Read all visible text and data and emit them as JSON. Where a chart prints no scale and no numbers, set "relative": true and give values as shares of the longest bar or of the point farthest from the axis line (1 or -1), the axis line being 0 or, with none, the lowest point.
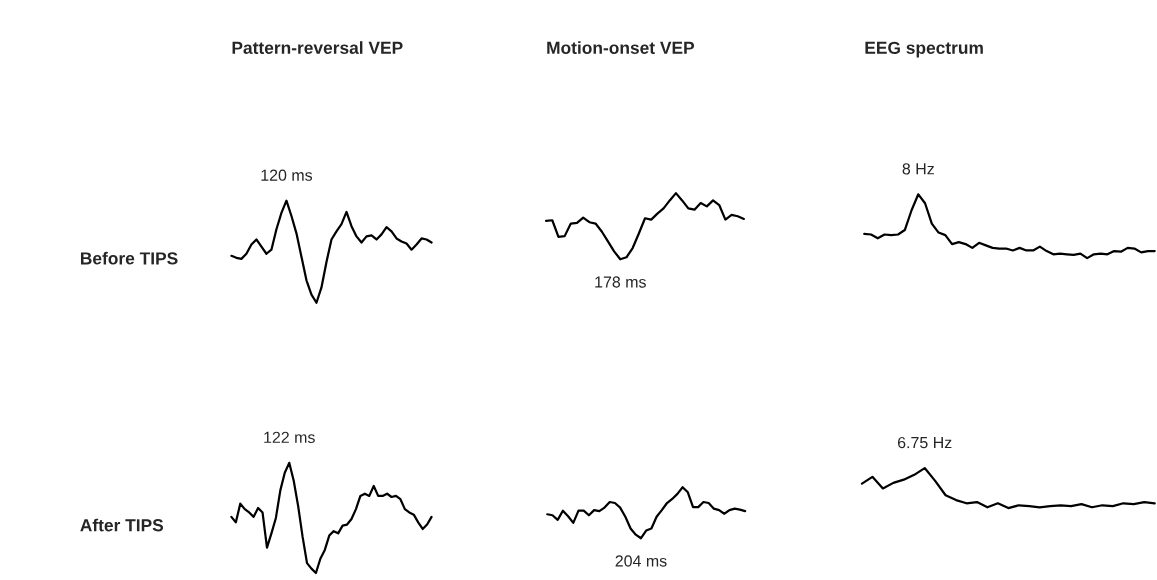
{
  "chart_data": [
    {
      "type": "line",
      "relative": true,
      "title": "Pattern-reversal VEP",
      "ylabel": "Before TIPS",
      "annotations": [
        {
          "text": "120 ms",
          "y": 1
        }
      ],
      "categories": [
        null,
        null,
        null,
        null,
        null,
        null,
        null,
        null,
        null,
        null,
        null,
        null,
        null,
        null,
        null,
        null,
        null,
        null,
        null,
        null,
        null,
        null,
        null,
        null,
        null,
        null,
        null,
        null,
        null,
        null,
        null,
        null,
        null,
        null,
        null,
        null,
        null,
        null,
        null,
        null,
        null
      ],
      "series": [
        {
          "color": "#000000",
          "values": [
            0.46,
            0.44,
            0.43,
            0.48,
            0.57,
            0.62,
            0.55,
            0.48,
            0.52,
            0.72,
            0.88,
            1,
            0.85,
            0.68,
            0.45,
            0.22,
            0.08,
            0,
            0.15,
            0.4,
            0.62,
            0.7,
            0.77,
            0.89,
            0.75,
            0.65,
            0.59,
            0.65,
            0.66,
            0.62,
            0.67,
            0.74,
            0.7,
            0.63,
            0.6,
            0.58,
            0.52,
            0.57,
            0.63,
            0.62,
            0.59
          ]
        }
      ]
    },
    {
      "type": "line",
      "relative": true,
      "title": "Motion-onset VEP",
      "annotations": [
        {
          "text": "178 ms",
          "y": 0
        }
      ],
      "categories": [
        null,
        null,
        null,
        null,
        null,
        null,
        null,
        null,
        null,
        null,
        null,
        null,
        null,
        null,
        null,
        null,
        null,
        null,
        null,
        null,
        null,
        null,
        null,
        null,
        null,
        null,
        null,
        null,
        null,
        null,
        null,
        null,
        null
      ],
      "series": [
        {
          "color": "#000000",
          "values": [
            0.58,
            0.59,
            0.34,
            0.35,
            0.54,
            0.55,
            0.63,
            0.56,
            0.54,
            0.42,
            0.27,
            0.12,
            0,
            0.03,
            0.17,
            0.39,
            0.62,
            0.6,
            0.69,
            0.77,
            0.89,
            1,
            0.89,
            0.77,
            0.75,
            0.85,
            0.8,
            0.89,
            0.82,
            0.6,
            0.67,
            0.65,
            0.61
          ]
        }
      ]
    },
    {
      "type": "line",
      "relative": true,
      "title": "EEG spectrum",
      "annotations": [
        {
          "text": "8 Hz",
          "y": 1
        }
      ],
      "categories": [
        null,
        null,
        null,
        null,
        null,
        null,
        null,
        null,
        null,
        null,
        null,
        null,
        null,
        null,
        null,
        null,
        null,
        null,
        null,
        null,
        null,
        null,
        null,
        null,
        null,
        null,
        null,
        null,
        null,
        null,
        null,
        null,
        null,
        null,
        null,
        null,
        null,
        null,
        null,
        null,
        null,
        null,
        null,
        null
      ],
      "series": [
        {
          "color": "#000000",
          "values": [
            0.38,
            0.37,
            0.31,
            0.37,
            0.36,
            0.37,
            0.44,
            0.75,
            1,
            0.86,
            0.54,
            0.4,
            0.36,
            0.22,
            0.25,
            0.22,
            0.16,
            0.24,
            0.2,
            0.16,
            0.15,
            0.15,
            0.12,
            0.16,
            0.12,
            0.12,
            0.18,
            0.11,
            0.06,
            0.07,
            0.06,
            0.05,
            0.07,
            0,
            0.06,
            0.07,
            0.06,
            0.11,
            0.1,
            0.16,
            0.15,
            0.09,
            0.11,
            0.11
          ]
        }
      ]
    },
    {
      "type": "line",
      "relative": true,
      "ylabel": "After TIPS",
      "annotations": [
        {
          "text": "122 ms",
          "y": 1
        }
      ],
      "categories": [
        null,
        null,
        null,
        null,
        null,
        null,
        null,
        null,
        null,
        null,
        null,
        null,
        null,
        null,
        null,
        null,
        null,
        null,
        null,
        null,
        null,
        null,
        null,
        null,
        null,
        null,
        null,
        null,
        null,
        null,
        null,
        null,
        null,
        null,
        null,
        null,
        null,
        null,
        null,
        null,
        null,
        null,
        null,
        null,
        null,
        null
      ],
      "series": [
        {
          "color": "#000000",
          "values": [
            0.51,
            0.46,
            0.63,
            0.58,
            0.55,
            0.51,
            0.59,
            0.55,
            0.23,
            0.36,
            0.5,
            0.75,
            0.91,
            1,
            0.84,
            0.61,
            0.33,
            0.09,
            0.04,
            0,
            0.13,
            0.21,
            0.34,
            0.38,
            0.36,
            0.43,
            0.44,
            0.49,
            0.58,
            0.7,
            0.72,
            0.7,
            0.79,
            0.7,
            0.7,
            0.72,
            0.69,
            0.7,
            0.67,
            0.58,
            0.55,
            0.53,
            0.46,
            0.4,
            0.44,
            0.51
          ]
        }
      ]
    },
    {
      "type": "line",
      "relative": true,
      "annotations": [
        {
          "text": "204 ms",
          "y": 0
        }
      ],
      "categories": [
        null,
        null,
        null,
        null,
        null,
        null,
        null,
        null,
        null,
        null,
        null,
        null,
        null,
        null,
        null,
        null,
        null,
        null,
        null,
        null,
        null,
        null,
        null,
        null,
        null,
        null,
        null,
        null,
        null,
        null,
        null,
        null,
        null,
        null,
        null,
        null,
        null,
        null,
        null
      ],
      "series": [
        {
          "color": "#000000",
          "values": [
            0.47,
            0.45,
            0.36,
            0.54,
            0.43,
            0.3,
            0.54,
            0.54,
            0.45,
            0.55,
            0.53,
            0.6,
            0.71,
            0.69,
            0.6,
            0.42,
            0.19,
            0.07,
            0,
            0.15,
            0.19,
            0.42,
            0.55,
            0.69,
            0.77,
            0.87,
            1,
            0.9,
            0.61,
            0.61,
            0.71,
            0.69,
            0.58,
            0.55,
            0.48,
            0.55,
            0.58,
            0.56,
            0.53
          ]
        }
      ]
    },
    {
      "type": "line",
      "relative": true,
      "annotations": [
        {
          "text": "6.75 Hz",
          "y": 1
        }
      ],
      "categories": [
        null,
        null,
        null,
        null,
        null,
        null,
        null,
        null,
        null,
        null,
        null,
        null,
        null,
        null,
        null,
        null,
        null,
        null,
        null,
        null,
        null,
        null,
        null,
        null,
        null,
        null,
        null,
        null,
        null
      ],
      "series": [
        {
          "color": "#000000",
          "values": [
            0.61,
            0.78,
            0.49,
            0.63,
            0.71,
            0.83,
            1,
            0.68,
            0.32,
            0.2,
            0.12,
            0.15,
            0.02,
            0.12,
            0,
            0.07,
            0.05,
            0.02,
            0.05,
            0.07,
            0.05,
            0.1,
            0.02,
            0.07,
            0.05,
            0.12,
            0.1,
            0.15,
            0.12
          ]
        }
      ]
    }
  ]
}
